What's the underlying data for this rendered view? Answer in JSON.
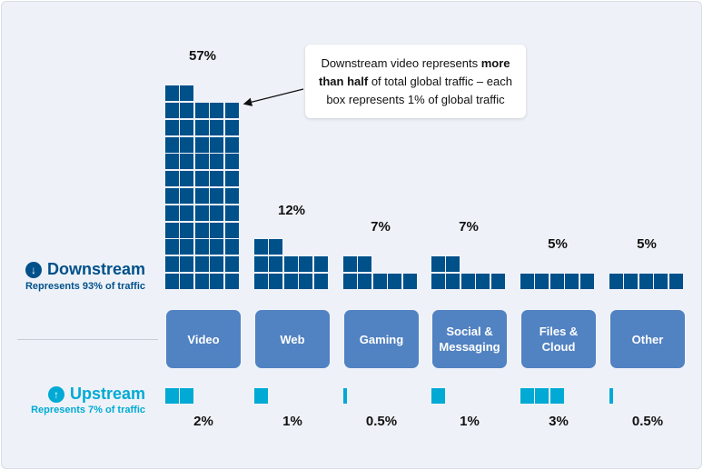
{
  "chart_data": {
    "type": "waffle-bar",
    "title": "",
    "unit_note": "each box represents 1% of global traffic",
    "categories": [
      "Video",
      "Web",
      "Gaming",
      "Social & Messaging",
      "Files & Cloud",
      "Other"
    ],
    "category_lines": [
      [
        "Video"
      ],
      [
        "Web"
      ],
      [
        "Gaming"
      ],
      [
        "Social &",
        "Messaging"
      ],
      [
        "Files &",
        "Cloud"
      ],
      [
        "Other"
      ]
    ],
    "series": [
      {
        "name": "Downstream",
        "values": [
          57,
          12,
          7,
          7,
          5,
          5
        ],
        "labels": [
          "57%",
          "12%",
          "7%",
          "7%",
          "5%",
          "5%"
        ],
        "color": "#00508a"
      },
      {
        "name": "Upstream",
        "values": [
          2,
          1,
          0.5,
          1,
          3,
          0.5
        ],
        "labels": [
          "2%",
          "1%",
          "0.5%",
          "1%",
          "3%",
          "0.5%"
        ],
        "color": "#00aad4"
      }
    ]
  },
  "legend": {
    "downstream": {
      "title": "Downstream",
      "subtitle": "Represents 93% of traffic",
      "icon": "arrow-down-circle-icon",
      "color": "#00508a"
    },
    "upstream": {
      "title": "Upstream",
      "subtitle": "Represents 7% of traffic",
      "icon": "arrow-up-circle-icon",
      "color": "#00aad4"
    }
  },
  "callout": {
    "pre": "Downstream video represents ",
    "bold": "more than half",
    "post": " of total global traffic – each box represents 1% of global traffic"
  }
}
